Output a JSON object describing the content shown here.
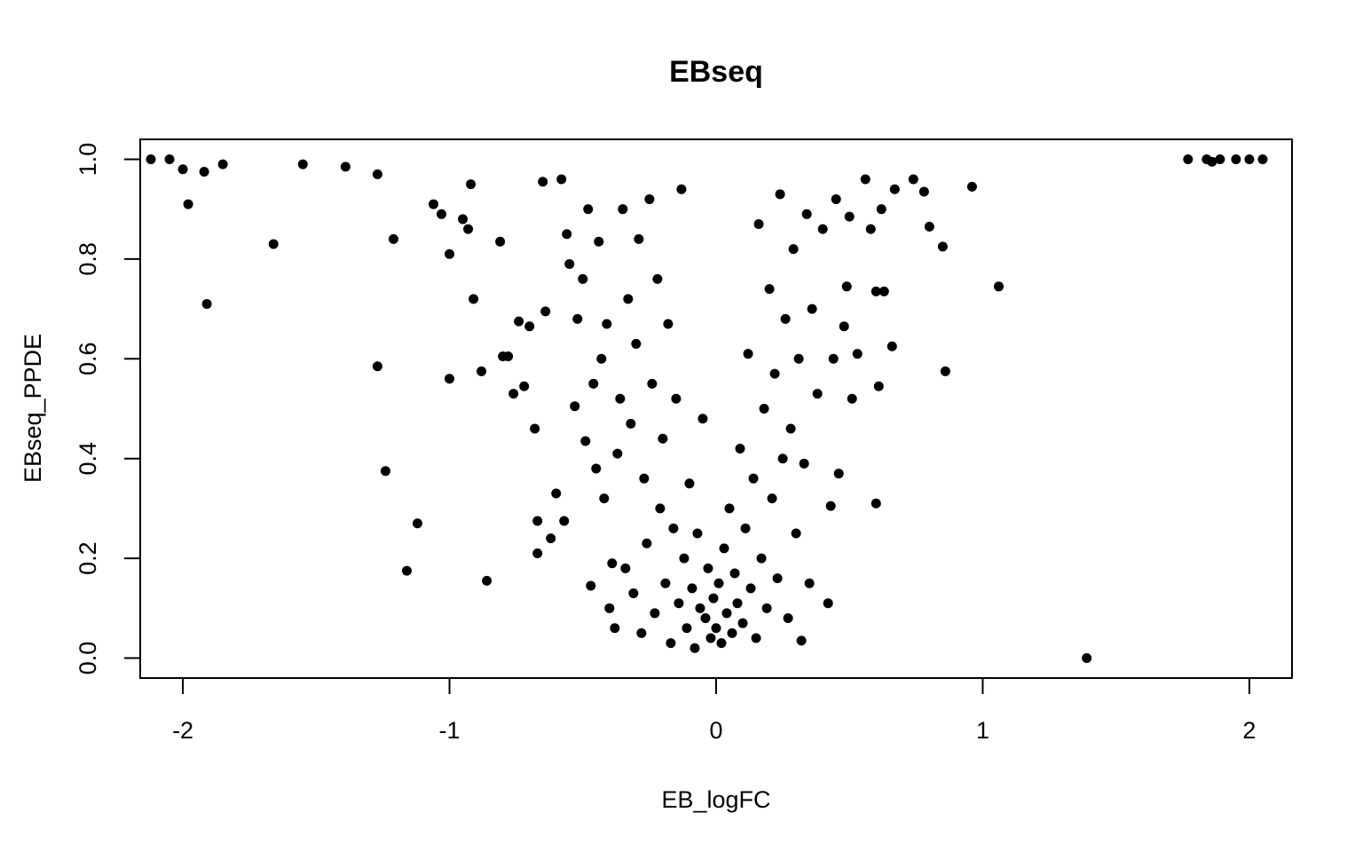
{
  "chart_data": {
    "type": "scatter",
    "title": "EBseq",
    "xlabel": "EB_logFC",
    "ylabel": "EBseq_PPDE",
    "xlim": [
      -2.16,
      2.16
    ],
    "ylim": [
      -0.04,
      1.04
    ],
    "xticks": [
      -2,
      -1,
      0,
      1,
      2
    ],
    "xtick_labels": [
      "-2",
      "-1",
      "0",
      "1",
      "2"
    ],
    "yticks": [
      0.0,
      0.2,
      0.4,
      0.6,
      0.8,
      1.0
    ],
    "ytick_labels": [
      "0.0",
      "0.2",
      "0.4",
      "0.6",
      "0.8",
      "1.0"
    ],
    "grid": false,
    "legend": "none",
    "marker_color": "#000000",
    "points": [
      {
        "x": -2.12,
        "y": 1.0
      },
      {
        "x": -2.05,
        "y": 1.0
      },
      {
        "x": -2.0,
        "y": 0.98
      },
      {
        "x": -1.98,
        "y": 0.91
      },
      {
        "x": -1.92,
        "y": 0.975
      },
      {
        "x": -1.91,
        "y": 0.71
      },
      {
        "x": -1.85,
        "y": 0.99
      },
      {
        "x": -1.66,
        "y": 0.83
      },
      {
        "x": -1.55,
        "y": 0.99
      },
      {
        "x": -1.39,
        "y": 0.985
      },
      {
        "x": -1.27,
        "y": 0.585
      },
      {
        "x": -1.27,
        "y": 0.97
      },
      {
        "x": -1.24,
        "y": 0.375
      },
      {
        "x": -1.21,
        "y": 0.84
      },
      {
        "x": -1.16,
        "y": 0.175
      },
      {
        "x": -1.12,
        "y": 0.27
      },
      {
        "x": -1.06,
        "y": 0.91
      },
      {
        "x": -1.03,
        "y": 0.89
      },
      {
        "x": -1.0,
        "y": 0.81
      },
      {
        "x": -1.0,
        "y": 0.56
      },
      {
        "x": -0.95,
        "y": 0.88
      },
      {
        "x": -0.93,
        "y": 0.86
      },
      {
        "x": -0.92,
        "y": 0.95
      },
      {
        "x": -0.91,
        "y": 0.72
      },
      {
        "x": -0.88,
        "y": 0.575
      },
      {
        "x": -0.86,
        "y": 0.155
      },
      {
        "x": -0.81,
        "y": 0.835
      },
      {
        "x": -0.8,
        "y": 0.605
      },
      {
        "x": -0.78,
        "y": 0.605
      },
      {
        "x": -0.76,
        "y": 0.53
      },
      {
        "x": -0.74,
        "y": 0.675
      },
      {
        "x": -0.72,
        "y": 0.545
      },
      {
        "x": -0.7,
        "y": 0.665
      },
      {
        "x": -0.68,
        "y": 0.46
      },
      {
        "x": -0.67,
        "y": 0.21
      },
      {
        "x": -0.67,
        "y": 0.275
      },
      {
        "x": -0.65,
        "y": 0.955
      },
      {
        "x": -0.64,
        "y": 0.695
      },
      {
        "x": -0.62,
        "y": 0.24
      },
      {
        "x": -0.6,
        "y": 0.33
      },
      {
        "x": -0.58,
        "y": 0.96
      },
      {
        "x": -0.57,
        "y": 0.275
      },
      {
        "x": -0.56,
        "y": 0.85
      },
      {
        "x": -0.55,
        "y": 0.79
      },
      {
        "x": -0.53,
        "y": 0.505
      },
      {
        "x": -0.52,
        "y": 0.68
      },
      {
        "x": -0.5,
        "y": 0.76
      },
      {
        "x": -0.49,
        "y": 0.435
      },
      {
        "x": -0.48,
        "y": 0.9
      },
      {
        "x": -0.47,
        "y": 0.145
      },
      {
        "x": -0.46,
        "y": 0.55
      },
      {
        "x": -0.45,
        "y": 0.38
      },
      {
        "x": -0.44,
        "y": 0.835
      },
      {
        "x": -0.43,
        "y": 0.6
      },
      {
        "x": -0.42,
        "y": 0.32
      },
      {
        "x": -0.41,
        "y": 0.67
      },
      {
        "x": -0.4,
        "y": 0.1
      },
      {
        "x": -0.39,
        "y": 0.19
      },
      {
        "x": -0.38,
        "y": 0.06
      },
      {
        "x": -0.37,
        "y": 0.41
      },
      {
        "x": -0.36,
        "y": 0.52
      },
      {
        "x": -0.35,
        "y": 0.9
      },
      {
        "x": -0.34,
        "y": 0.18
      },
      {
        "x": -0.33,
        "y": 0.72
      },
      {
        "x": -0.32,
        "y": 0.47
      },
      {
        "x": -0.31,
        "y": 0.13
      },
      {
        "x": -0.3,
        "y": 0.63
      },
      {
        "x": -0.29,
        "y": 0.84
      },
      {
        "x": -0.28,
        "y": 0.05
      },
      {
        "x": -0.27,
        "y": 0.36
      },
      {
        "x": -0.26,
        "y": 0.23
      },
      {
        "x": -0.25,
        "y": 0.92
      },
      {
        "x": -0.24,
        "y": 0.55
      },
      {
        "x": -0.23,
        "y": 0.09
      },
      {
        "x": -0.22,
        "y": 0.76
      },
      {
        "x": -0.21,
        "y": 0.3
      },
      {
        "x": -0.2,
        "y": 0.44
      },
      {
        "x": -0.19,
        "y": 0.15
      },
      {
        "x": -0.18,
        "y": 0.67
      },
      {
        "x": -0.17,
        "y": 0.03
      },
      {
        "x": -0.16,
        "y": 0.26
      },
      {
        "x": -0.15,
        "y": 0.52
      },
      {
        "x": -0.14,
        "y": 0.11
      },
      {
        "x": -0.13,
        "y": 0.94
      },
      {
        "x": -0.12,
        "y": 0.2
      },
      {
        "x": -0.11,
        "y": 0.06
      },
      {
        "x": -0.1,
        "y": 0.35
      },
      {
        "x": -0.09,
        "y": 0.14
      },
      {
        "x": -0.08,
        "y": 0.02
      },
      {
        "x": -0.07,
        "y": 0.25
      },
      {
        "x": -0.06,
        "y": 0.1
      },
      {
        "x": -0.05,
        "y": 0.48
      },
      {
        "x": -0.04,
        "y": 0.08
      },
      {
        "x": -0.03,
        "y": 0.18
      },
      {
        "x": -0.02,
        "y": 0.04
      },
      {
        "x": -0.01,
        "y": 0.12
      },
      {
        "x": 0.0,
        "y": 0.06
      },
      {
        "x": 0.01,
        "y": 0.15
      },
      {
        "x": 0.02,
        "y": 0.03
      },
      {
        "x": 0.03,
        "y": 0.22
      },
      {
        "x": 0.04,
        "y": 0.09
      },
      {
        "x": 0.05,
        "y": 0.3
      },
      {
        "x": 0.06,
        "y": 0.05
      },
      {
        "x": 0.07,
        "y": 0.17
      },
      {
        "x": 0.08,
        "y": 0.11
      },
      {
        "x": 0.09,
        "y": 0.42
      },
      {
        "x": 0.1,
        "y": 0.07
      },
      {
        "x": 0.11,
        "y": 0.26
      },
      {
        "x": 0.12,
        "y": 0.61
      },
      {
        "x": 0.13,
        "y": 0.14
      },
      {
        "x": 0.14,
        "y": 0.36
      },
      {
        "x": 0.15,
        "y": 0.04
      },
      {
        "x": 0.16,
        "y": 0.87
      },
      {
        "x": 0.17,
        "y": 0.2
      },
      {
        "x": 0.18,
        "y": 0.5
      },
      {
        "x": 0.19,
        "y": 0.1
      },
      {
        "x": 0.2,
        "y": 0.74
      },
      {
        "x": 0.21,
        "y": 0.32
      },
      {
        "x": 0.22,
        "y": 0.57
      },
      {
        "x": 0.23,
        "y": 0.16
      },
      {
        "x": 0.24,
        "y": 0.93
      },
      {
        "x": 0.25,
        "y": 0.4
      },
      {
        "x": 0.26,
        "y": 0.68
      },
      {
        "x": 0.27,
        "y": 0.08
      },
      {
        "x": 0.28,
        "y": 0.46
      },
      {
        "x": 0.29,
        "y": 0.82
      },
      {
        "x": 0.3,
        "y": 0.25
      },
      {
        "x": 0.31,
        "y": 0.6
      },
      {
        "x": 0.32,
        "y": 0.035
      },
      {
        "x": 0.33,
        "y": 0.39
      },
      {
        "x": 0.34,
        "y": 0.89
      },
      {
        "x": 0.35,
        "y": 0.15
      },
      {
        "x": 0.36,
        "y": 0.7
      },
      {
        "x": 0.38,
        "y": 0.53
      },
      {
        "x": 0.4,
        "y": 0.86
      },
      {
        "x": 0.42,
        "y": 0.11
      },
      {
        "x": 0.43,
        "y": 0.305
      },
      {
        "x": 0.44,
        "y": 0.6
      },
      {
        "x": 0.45,
        "y": 0.92
      },
      {
        "x": 0.46,
        "y": 0.37
      },
      {
        "x": 0.48,
        "y": 0.665
      },
      {
        "x": 0.49,
        "y": 0.745
      },
      {
        "x": 0.5,
        "y": 0.885
      },
      {
        "x": 0.51,
        "y": 0.52
      },
      {
        "x": 0.53,
        "y": 0.61
      },
      {
        "x": 0.56,
        "y": 0.96
      },
      {
        "x": 0.58,
        "y": 0.86
      },
      {
        "x": 0.6,
        "y": 0.735
      },
      {
        "x": 0.6,
        "y": 0.31
      },
      {
        "x": 0.61,
        "y": 0.545
      },
      {
        "x": 0.62,
        "y": 0.9
      },
      {
        "x": 0.63,
        "y": 0.735
      },
      {
        "x": 0.66,
        "y": 0.625
      },
      {
        "x": 0.67,
        "y": 0.94
      },
      {
        "x": 0.74,
        "y": 0.96
      },
      {
        "x": 0.78,
        "y": 0.935
      },
      {
        "x": 0.8,
        "y": 0.865
      },
      {
        "x": 0.85,
        "y": 0.825
      },
      {
        "x": 0.86,
        "y": 0.575
      },
      {
        "x": 0.96,
        "y": 0.945
      },
      {
        "x": 1.06,
        "y": 0.745
      },
      {
        "x": 1.39,
        "y": 0.0
      },
      {
        "x": 1.77,
        "y": 1.0
      },
      {
        "x": 1.84,
        "y": 1.0
      },
      {
        "x": 1.86,
        "y": 0.995
      },
      {
        "x": 1.89,
        "y": 1.0
      },
      {
        "x": 1.95,
        "y": 1.0
      },
      {
        "x": 2.0,
        "y": 1.0
      },
      {
        "x": 2.05,
        "y": 1.0
      }
    ]
  }
}
